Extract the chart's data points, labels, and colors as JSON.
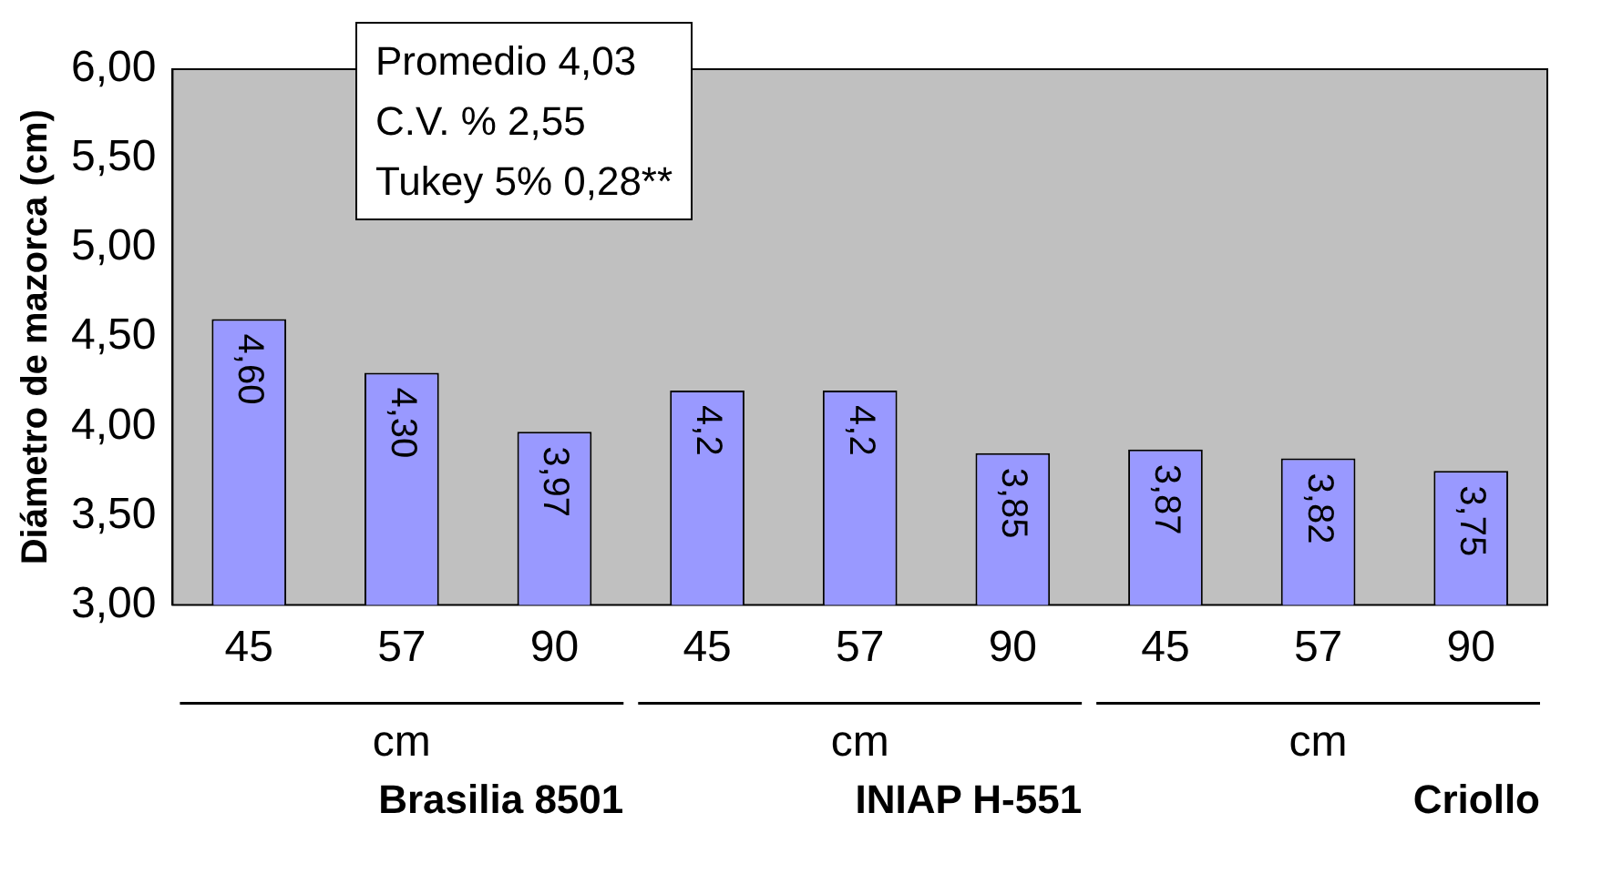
{
  "chart_data": {
    "type": "bar",
    "ylabel": "Diámetro de mazorca (cm)",
    "categories": [
      "45",
      "57",
      "90",
      "45",
      "57",
      "90",
      "45",
      "57",
      "90"
    ],
    "values": [
      4.6,
      4.3,
      3.97,
      4.2,
      4.2,
      3.85,
      3.87,
      3.82,
      3.75
    ],
    "value_labels": [
      "4,60",
      "4,30",
      "3,97",
      "4,2",
      "4,2",
      "3,85",
      "3,87",
      "3,82",
      "3,75"
    ],
    "color": "#9999ff",
    "ylim": [
      3,
      6
    ],
    "yticks": [
      {
        "value": 3,
        "label": "3,00"
      },
      {
        "value": 3.5,
        "label": "3,50"
      },
      {
        "value": 4,
        "label": "4,00"
      },
      {
        "value": 4.5,
        "label": "4,50"
      },
      {
        "value": 5,
        "label": "5,00"
      },
      {
        "value": 5.5,
        "label": "5,50"
      },
      {
        "value": 6,
        "label": "6,00"
      }
    ],
    "grid": false,
    "legend": false,
    "annotations": [
      "cm",
      "cm",
      "cm",
      "Brasilia 8501",
      "INIAP H-551",
      "Criollo",
      "Promedio 4,03",
      "C.V. % 2,55",
      "Tukey 5% 0,28**"
    ]
  }
}
